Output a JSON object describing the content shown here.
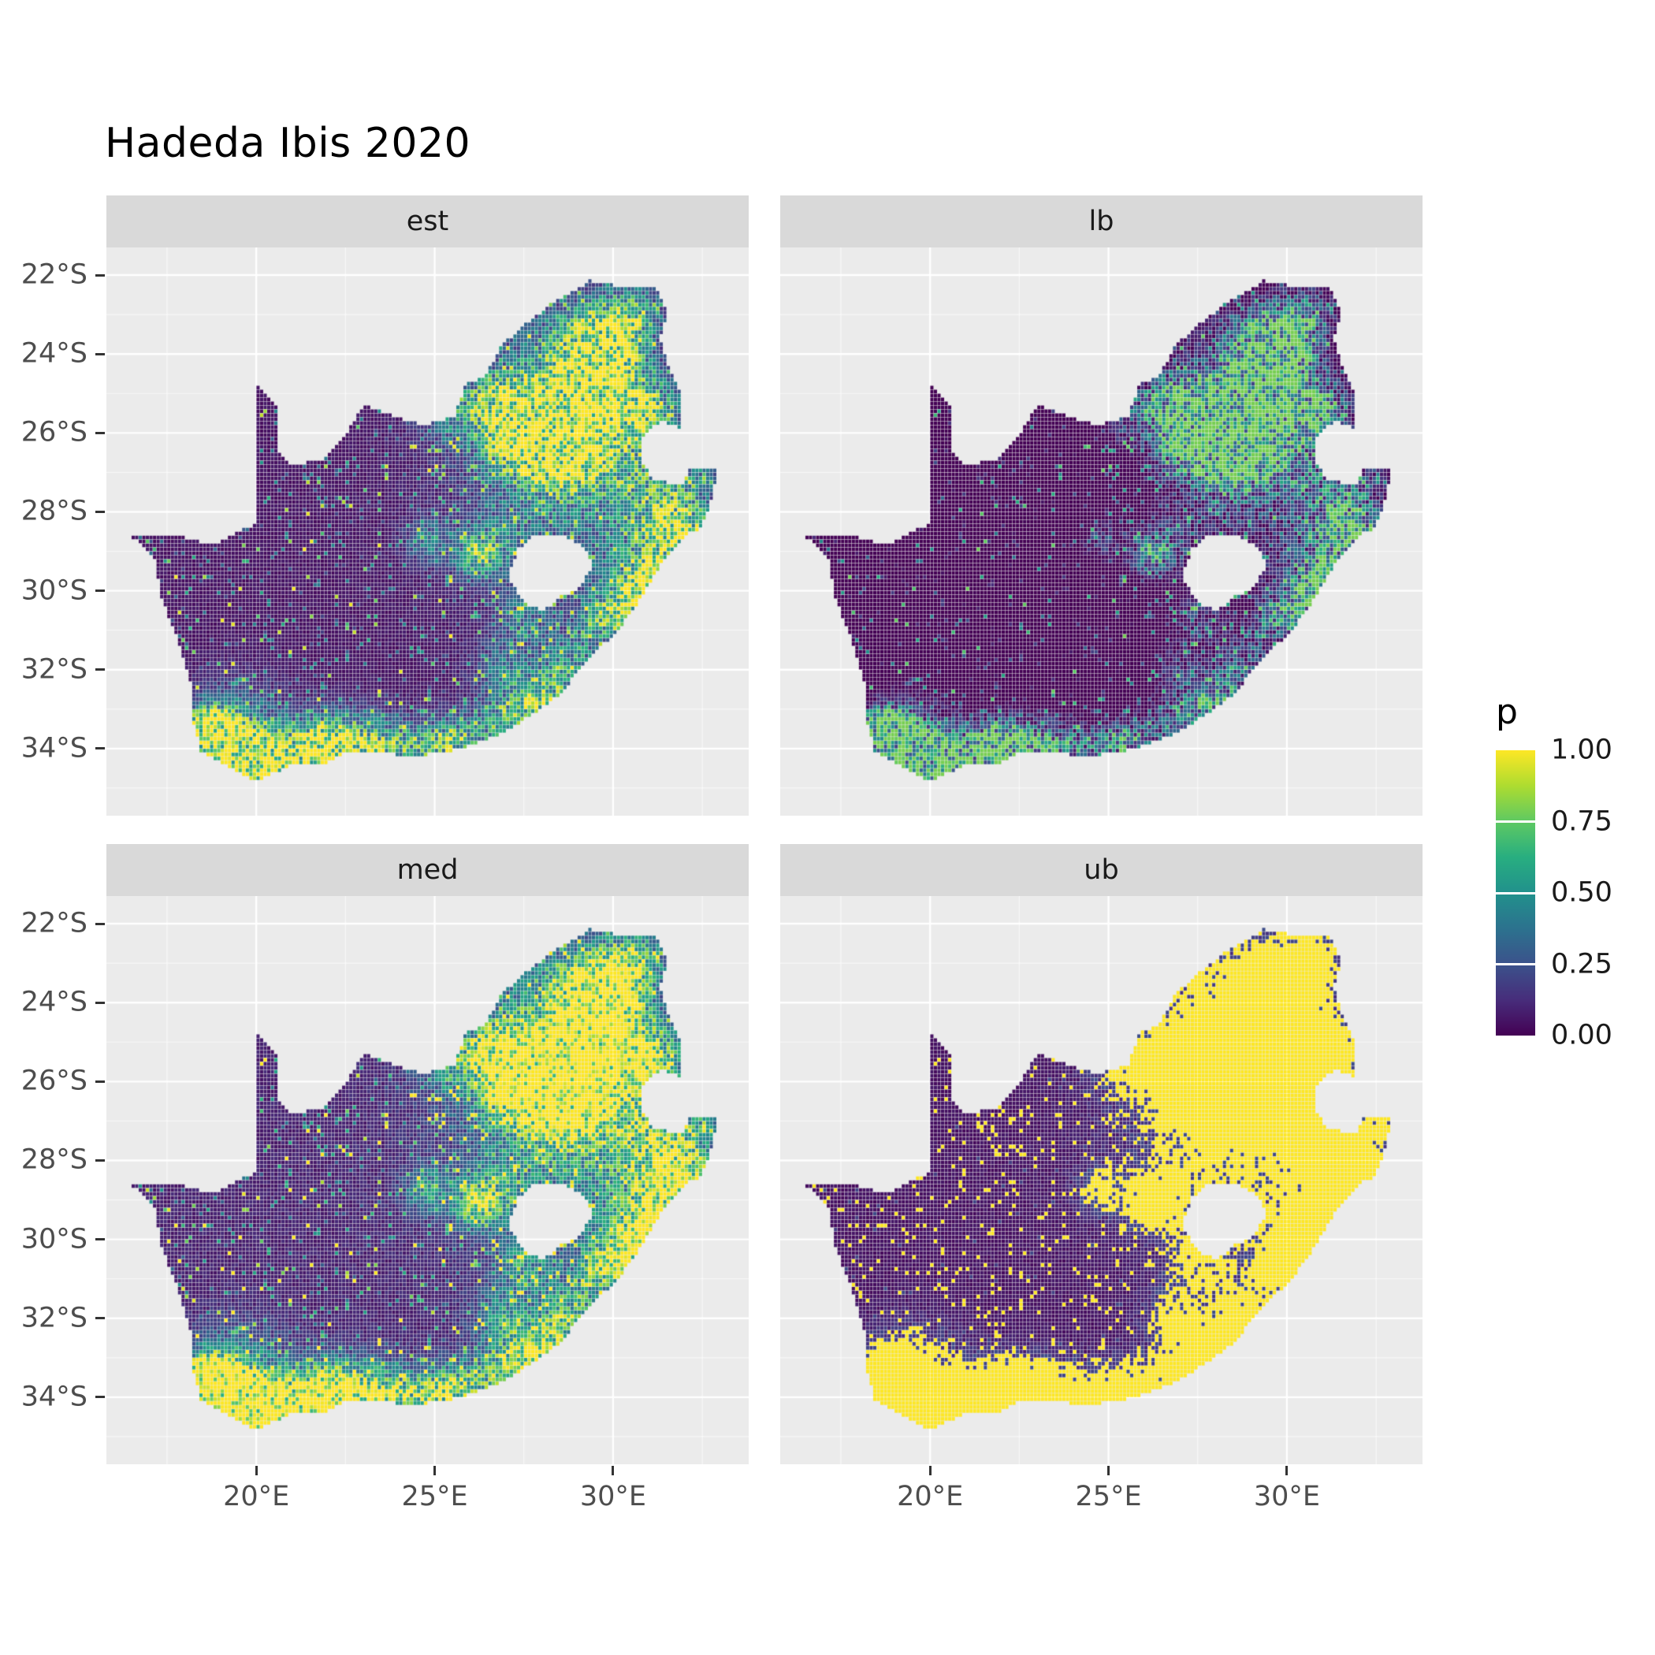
{
  "title": "Hadeda Ibis 2020",
  "chart_data": {
    "type": "heatmap",
    "subtype": "faceted_raster_probability_map",
    "region": "South Africa",
    "variable": "p",
    "facets": [
      {
        "label": "est",
        "mode": "linear",
        "gain": 1.0,
        "gamma": 1.0
      },
      {
        "label": "lb",
        "mode": "sub",
        "offset": 0.2,
        "gain": 1.05,
        "gamma": 1.35
      },
      {
        "label": "med",
        "mode": "linear",
        "gain": 1.22,
        "gamma": 0.85
      },
      {
        "label": "ub",
        "mode": "threshold",
        "gain": 2.1,
        "threshold": 0.52,
        "low_scale": 0.45
      }
    ],
    "legend": {
      "title": "p",
      "entries": [
        {
          "label": "1.00",
          "value": 1.0
        },
        {
          "label": "0.75",
          "value": 0.75
        },
        {
          "label": "0.50",
          "value": 0.5
        },
        {
          "label": "0.25",
          "value": 0.25
        },
        {
          "label": "0.00",
          "value": 0.0
        }
      ],
      "bar_ticks": [
        0.25,
        0.5,
        0.75
      ]
    },
    "axes": {
      "x": {
        "domain": [
          15.8,
          33.8
        ],
        "major": [
          {
            "label": "20°E",
            "value": 20
          },
          {
            "label": "25°E",
            "value": 25
          },
          {
            "label": "30°E",
            "value": 30
          }
        ],
        "minor": [
          17.5,
          22.5,
          27.5,
          32.5
        ]
      },
      "y": {
        "domain_south": [
          21.3,
          35.7
        ],
        "major": [
          {
            "label": "22°S",
            "value": 22
          },
          {
            "label": "24°S",
            "value": 24
          },
          {
            "label": "26°S",
            "value": 26
          },
          {
            "label": "28°S",
            "value": 28
          },
          {
            "label": "30°S",
            "value": 30
          },
          {
            "label": "32°S",
            "value": 32
          },
          {
            "label": "34°S",
            "value": 34
          }
        ],
        "minor": [
          23,
          25,
          27,
          29,
          31,
          33,
          35
        ]
      }
    },
    "color_scale": {
      "name": "viridis",
      "stops": [
        {
          "t": 0.0,
          "color": "#440154"
        },
        {
          "t": 0.125,
          "color": "#472D7B"
        },
        {
          "t": 0.25,
          "color": "#3B528B"
        },
        {
          "t": 0.375,
          "color": "#2C728E"
        },
        {
          "t": 0.5,
          "color": "#21918C"
        },
        {
          "t": 0.625,
          "color": "#28AE80"
        },
        {
          "t": 0.75,
          "color": "#5EC962"
        },
        {
          "t": 0.875,
          "color": "#ADDC30"
        },
        {
          "t": 1.0,
          "color": "#FDE725"
        }
      ]
    },
    "cell_size_deg": 0.1,
    "base_level": 0.045,
    "outline": [
      [
        16.45,
        -28.58
      ],
      [
        17.15,
        -29.15
      ],
      [
        17.35,
        -30.2
      ],
      [
        17.8,
        -31.25
      ],
      [
        18.2,
        -32.4
      ],
      [
        18.25,
        -33.4
      ],
      [
        18.45,
        -34.05
      ],
      [
        19.3,
        -34.5
      ],
      [
        20.0,
        -34.82
      ],
      [
        20.9,
        -34.45
      ],
      [
        21.9,
        -34.4
      ],
      [
        22.55,
        -34.05
      ],
      [
        23.4,
        -34.1
      ],
      [
        24.45,
        -34.2
      ],
      [
        25.65,
        -34.02
      ],
      [
        26.45,
        -33.78
      ],
      [
        27.1,
        -33.5
      ],
      [
        27.95,
        -33.0
      ],
      [
        28.6,
        -32.55
      ],
      [
        29.3,
        -31.7
      ],
      [
        30.1,
        -31.05
      ],
      [
        30.85,
        -30.1
      ],
      [
        31.3,
        -29.4
      ],
      [
        31.8,
        -28.8
      ],
      [
        32.1,
        -28.55
      ],
      [
        32.4,
        -28.5
      ],
      [
        32.6,
        -28.15
      ],
      [
        32.85,
        -27.35
      ],
      [
        32.9,
        -26.85
      ],
      [
        32.15,
        -26.85
      ],
      [
        31.95,
        -27.3
      ],
      [
        31.15,
        -27.2
      ],
      [
        30.85,
        -26.75
      ],
      [
        30.8,
        -26.1
      ],
      [
        31.35,
        -25.7
      ],
      [
        31.95,
        -25.9
      ],
      [
        31.95,
        -25.05
      ],
      [
        31.6,
        -24.4
      ],
      [
        31.3,
        -23.6
      ],
      [
        31.55,
        -23.0
      ],
      [
        31.25,
        -22.35
      ],
      [
        30.3,
        -22.3
      ],
      [
        29.35,
        -22.15
      ],
      [
        28.25,
        -22.75
      ],
      [
        27.55,
        -23.25
      ],
      [
        26.85,
        -23.8
      ],
      [
        26.4,
        -24.6
      ],
      [
        25.85,
        -24.78
      ],
      [
        25.55,
        -25.6
      ],
      [
        24.7,
        -25.8
      ],
      [
        23.95,
        -25.6
      ],
      [
        23.0,
        -25.3
      ],
      [
        22.55,
        -26.0
      ],
      [
        21.9,
        -26.65
      ],
      [
        21.0,
        -26.85
      ],
      [
        20.65,
        -26.45
      ],
      [
        20.6,
        -25.35
      ],
      [
        20.0,
        -24.75
      ],
      [
        19.99,
        -26.5
      ],
      [
        19.98,
        -28.3
      ],
      [
        18.75,
        -28.85
      ],
      [
        17.6,
        -28.55
      ]
    ],
    "lesotho_hole": [
      [
        27.05,
        -29.6
      ],
      [
        27.35,
        -28.95
      ],
      [
        27.8,
        -28.6
      ],
      [
        28.65,
        -28.6
      ],
      [
        29.15,
        -28.9
      ],
      [
        29.45,
        -29.3
      ],
      [
        29.1,
        -29.9
      ],
      [
        28.55,
        -30.15
      ],
      [
        28.05,
        -30.5
      ],
      [
        27.7,
        -30.4
      ],
      [
        27.35,
        -30.1
      ]
    ],
    "hotspots": [
      [
        28.05,
        -26.1,
        0.85,
        1.0
      ],
      [
        28.3,
        -25.72,
        0.5,
        0.9
      ],
      [
        27.1,
        -25.75,
        0.55,
        0.4
      ],
      [
        29.45,
        -25.45,
        0.8,
        0.5
      ],
      [
        30.95,
        -25.35,
        0.5,
        0.45
      ],
      [
        29.2,
        -23.85,
        0.7,
        0.45
      ],
      [
        29.95,
        -23.35,
        0.6,
        0.4
      ],
      [
        30.7,
        -22.9,
        0.5,
        0.35
      ],
      [
        30.0,
        -24.1,
        0.6,
        0.35
      ],
      [
        26.6,
        -25.1,
        0.5,
        0.3
      ],
      [
        25.4,
        -25.6,
        0.5,
        0.25
      ],
      [
        24.77,
        -28.74,
        0.35,
        0.35
      ],
      [
        26.15,
        -29.1,
        0.4,
        0.5
      ],
      [
        26.8,
        -28.8,
        0.5,
        0.25
      ],
      [
        27.5,
        -30.7,
        0.45,
        0.3
      ],
      [
        30.9,
        -29.8,
        0.55,
        0.7
      ],
      [
        30.4,
        -30.6,
        0.45,
        0.5
      ],
      [
        29.6,
        -30.55,
        0.4,
        0.35
      ],
      [
        31.6,
        -28.7,
        0.5,
        0.4
      ],
      [
        29.0,
        -31.8,
        0.65,
        0.35
      ],
      [
        28.3,
        -32.5,
        0.55,
        0.3
      ],
      [
        27.95,
        -33.0,
        0.4,
        0.5
      ],
      [
        27.0,
        -33.3,
        0.5,
        0.5
      ],
      [
        26.9,
        -32.0,
        0.5,
        0.3
      ],
      [
        25.62,
        -33.88,
        0.5,
        0.6
      ],
      [
        24.5,
        -34.0,
        0.5,
        0.4
      ],
      [
        23.3,
        -33.95,
        0.55,
        0.55
      ],
      [
        22.2,
        -34.0,
        0.6,
        0.6
      ],
      [
        21.9,
        -33.8,
        0.45,
        0.35
      ],
      [
        20.8,
        -34.3,
        0.6,
        0.55
      ],
      [
        19.8,
        -34.4,
        0.55,
        0.65
      ],
      [
        19.2,
        -34.2,
        0.5,
        0.7
      ],
      [
        18.6,
        -33.95,
        0.5,
        0.95
      ],
      [
        18.85,
        -33.4,
        0.45,
        0.45
      ],
      [
        19.5,
        -33.6,
        0.9,
        0.3
      ],
      [
        30.0,
        -26.7,
        1.6,
        0.25
      ],
      [
        29.0,
        -27.6,
        2.2,
        0.18
      ],
      [
        28.0,
        -24.5,
        1.5,
        0.2
      ],
      [
        31.5,
        -27.6,
        0.8,
        0.3
      ],
      [
        32.0,
        -28.4,
        0.5,
        0.3
      ]
    ],
    "theme_colors": {
      "panel_bg": "#EBEBEB",
      "strip_bg": "#D9D9D9",
      "grid": "#FFFFFF",
      "axis_text": "#4D4D4D",
      "strip_text": "#1A1A1A",
      "title_text": "#000000",
      "background": "#FFFFFF"
    }
  }
}
